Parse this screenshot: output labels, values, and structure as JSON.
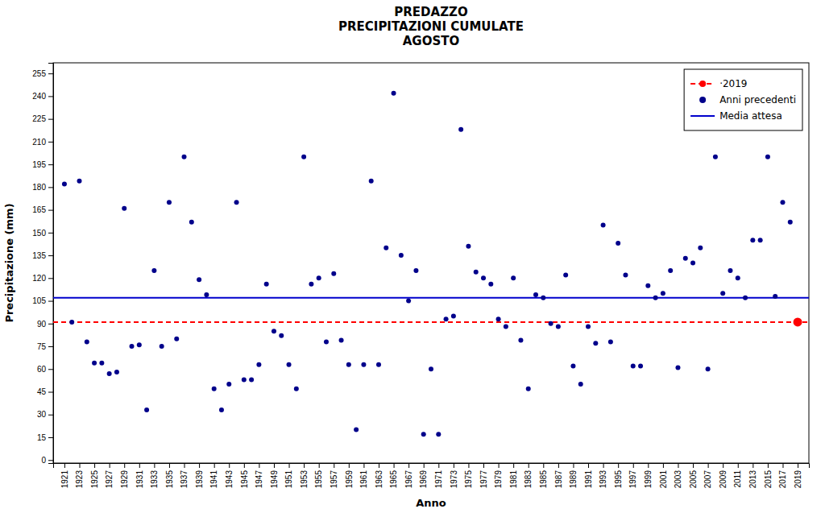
{
  "chart_data": {
    "type": "scatter",
    "title": "PREDAZZO\nPRECIPITAZIONI CUMULATE\nAGOSTO",
    "x_label": "Anno",
    "y_label": "Precipitazione (mm)",
    "xlim": [
      1919.5,
      2020.5
    ],
    "ylim": [
      -2,
      262
    ],
    "xticks": [
      1921,
      1923,
      1925,
      1927,
      1929,
      1931,
      1933,
      1935,
      1937,
      1939,
      1941,
      1943,
      1945,
      1947,
      1949,
      1951,
      1953,
      1955,
      1957,
      1959,
      1961,
      1963,
      1965,
      1967,
      1969,
      1971,
      1973,
      1975,
      1977,
      1979,
      1981,
      1983,
      1985,
      1987,
      1989,
      1991,
      1993,
      1995,
      1997,
      1999,
      2001,
      2003,
      2005,
      2007,
      2009,
      2011,
      2013,
      2015,
      2017,
      2019
    ],
    "yticks": [
      0,
      15,
      30,
      45,
      60,
      75,
      90,
      105,
      120,
      135,
      150,
      165,
      180,
      195,
      210,
      225,
      240,
      255
    ],
    "grid": false,
    "legend": "upper right",
    "series": [
      {
        "name": "·2019",
        "type": "hline",
        "color": "#ff0000",
        "line_style": "dashed",
        "marker": "circle",
        "x": [
          2019
        ],
        "values": [
          91
        ]
      },
      {
        "name": "Anni precedenti",
        "type": "scatter",
        "color": "#00008B",
        "marker": "circle",
        "x": [
          1921,
          1922,
          1923,
          1924,
          1925,
          1926,
          1927,
          1928,
          1929,
          1930,
          1931,
          1932,
          1933,
          1934,
          1935,
          1936,
          1937,
          1938,
          1939,
          1940,
          1941,
          1942,
          1943,
          1944,
          1945,
          1946,
          1947,
          1948,
          1949,
          1950,
          1951,
          1952,
          1953,
          1954,
          1955,
          1956,
          1957,
          1958,
          1959,
          1960,
          1961,
          1962,
          1963,
          1964,
          1965,
          1966,
          1967,
          1968,
          1969,
          1970,
          1971,
          1972,
          1973,
          1974,
          1975,
          1976,
          1977,
          1978,
          1979,
          1980,
          1981,
          1982,
          1983,
          1984,
          1985,
          1986,
          1987,
          1988,
          1989,
          1990,
          1991,
          1992,
          1993,
          1994,
          1995,
          1996,
          1997,
          1998,
          1999,
          2000,
          2001,
          2002,
          2003,
          2004,
          2005,
          2006,
          2007,
          2008,
          2009,
          2010,
          2011,
          2012,
          2013,
          2014,
          2015,
          2016,
          2017,
          2018
        ],
        "values": [
          182,
          91,
          184,
          78,
          64,
          64,
          57,
          58,
          166,
          75,
          76,
          33,
          125,
          75,
          170,
          80,
          200,
          157,
          119,
          109,
          47,
          33,
          50,
          170,
          53,
          53,
          63,
          116,
          85,
          82,
          63,
          47,
          200,
          116,
          120,
          78,
          123,
          79,
          63,
          20,
          63,
          184,
          63,
          140,
          242,
          135,
          105,
          125,
          17,
          60,
          17,
          93,
          95,
          218,
          141,
          124,
          120,
          116,
          93,
          88,
          120,
          79,
          47,
          109,
          107,
          90,
          88,
          122,
          62,
          50,
          88,
          77,
          155,
          78,
          143,
          122,
          62,
          62,
          115,
          107,
          110,
          125,
          61,
          133,
          130,
          140,
          60,
          200,
          110,
          125,
          120,
          107,
          145,
          145,
          200,
          108,
          170,
          157
        ]
      },
      {
        "name": "Media attesa",
        "type": "hline",
        "color": "#0000cc",
        "line_style": "solid",
        "values": [
          107
        ]
      }
    ]
  }
}
